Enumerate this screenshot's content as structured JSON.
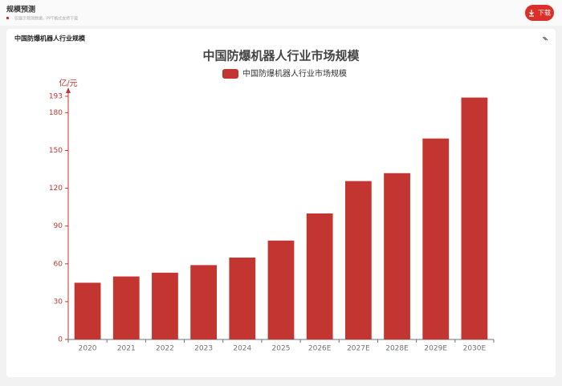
{
  "header": {
    "title": "规模预测",
    "subtitle": "仅展示预测数据，PPT格式支持下载",
    "button": "下载"
  },
  "card": {
    "title": "中国防爆机器人行业规模"
  },
  "chart_data": {
    "type": "bar",
    "title": "中国防爆机器人行业市场规模",
    "y_label": "亿/元",
    "categories": [
      "2020",
      "2021",
      "2022",
      "2023",
      "2024",
      "2025",
      "2026E",
      "2027E",
      "2028E",
      "2029E",
      "2030E"
    ],
    "series": [
      {
        "name": "中国防爆机器人行业市场规模",
        "color": "#c23531",
        "values": [
          45,
          50,
          53,
          59,
          65,
          78.5,
          100,
          125.7,
          132,
          159.5,
          192
        ]
      }
    ],
    "ylim": [
      0,
      193
    ],
    "yticks": [
      0,
      30,
      60,
      90,
      120,
      150,
      180,
      193
    ]
  }
}
